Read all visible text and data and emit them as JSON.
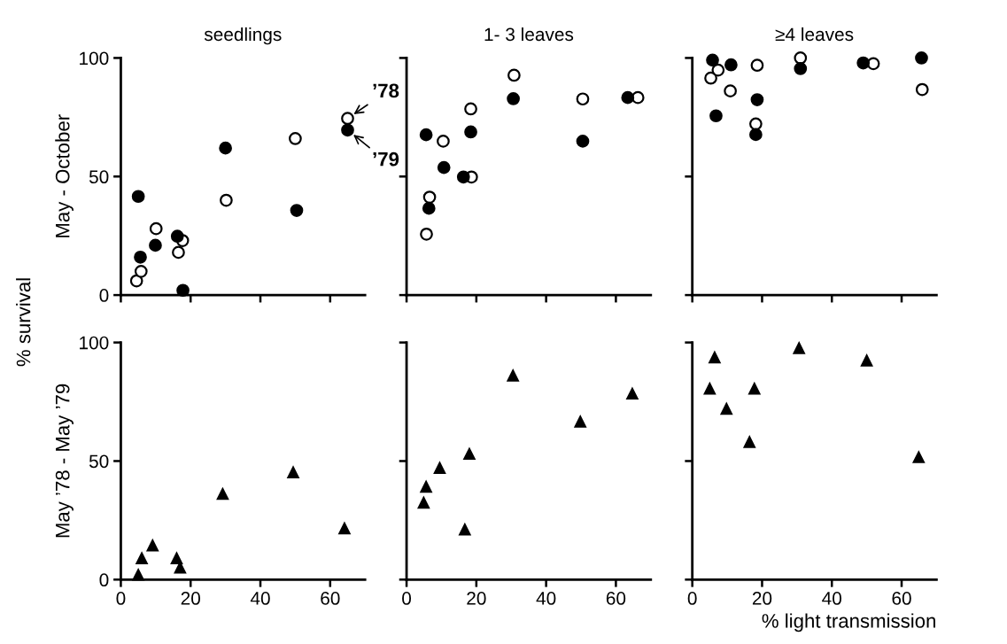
{
  "chart_data": [
    {
      "type": "scatter",
      "title": "seedlings",
      "ylabel": "May - October",
      "xlim": [
        0,
        70
      ],
      "ylim": [
        0,
        100
      ],
      "xticks": [
        0,
        20,
        40,
        60
      ],
      "yticks": [
        0,
        50,
        100
      ],
      "marker": "circle",
      "tick_labels": "y",
      "annotations": [
        "% survival",
        {
          "text": "’78",
          "x": 65,
          "y": 74.5
        },
        {
          "text": "’79",
          "x": 65,
          "y": 69.6
        }
      ],
      "series": [
        {
          "color": "#ffffff",
          "x": [
            4.5,
            5.8,
            10.1,
            16.5,
            17.7,
            30.2,
            50,
            65
          ],
          "values": [
            6,
            10,
            28,
            18,
            23,
            40,
            66,
            74.5
          ]
        },
        {
          "color": "#000000",
          "x": [
            5,
            5.6,
            9.9,
            16.2,
            17.8,
            30,
            50.4,
            65
          ],
          "values": [
            41.6,
            16,
            21,
            24.8,
            2,
            62,
            35.7,
            69.6
          ]
        }
      ]
    },
    {
      "type": "scatter",
      "title": "1- 3 leaves",
      "xlim": [
        0,
        70
      ],
      "ylim": [
        0,
        100
      ],
      "xticks": [
        0,
        20,
        40,
        60
      ],
      "yticks": [
        0,
        50,
        100
      ],
      "marker": "circle",
      "tick_labels": false,
      "series": [
        {
          "color": "#ffffff",
          "x": [
            5.7,
            6.6,
            10.5,
            18.4,
            18.6,
            30.8,
            50.5,
            66.3
          ],
          "values": [
            25.7,
            41.3,
            64.9,
            78.5,
            49.8,
            92.7,
            82.7,
            83.3
          ]
        },
        {
          "color": "#000000",
          "x": [
            5.6,
            6.4,
            10.7,
            16.3,
            18.4,
            30.6,
            50.5,
            63.4
          ],
          "values": [
            67.6,
            36.6,
            53.8,
            49.8,
            68.8,
            82.8,
            64.9,
            83.3
          ]
        }
      ]
    },
    {
      "type": "scatter",
      "title": "≥4 leaves",
      "xlim": [
        0,
        70
      ],
      "ylim": [
        0,
        100
      ],
      "xticks": [
        0,
        20,
        40,
        60
      ],
      "yticks": [
        0,
        50,
        100
      ],
      "marker": "circle",
      "tick_labels": false,
      "series": [
        {
          "color": "#ffffff",
          "x": [
            5.3,
            7.4,
            10.9,
            18.6,
            18.2,
            31,
            51.9,
            65.9
          ],
          "values": [
            91.5,
            94.9,
            86.1,
            96.9,
            72.2,
            100,
            97.6,
            86.7
          ]
        },
        {
          "color": "#000000",
          "x": [
            5.8,
            6.8,
            11.1,
            18.6,
            18.2,
            31,
            49,
            65.7
          ],
          "values": [
            99.1,
            75.6,
            97.1,
            82.4,
            67.7,
            95.5,
            97.9,
            100
          ]
        }
      ]
    },
    {
      "type": "scatter",
      "ylabel": "May ’78 - May ’79",
      "xlim": [
        0,
        70
      ],
      "ylim": [
        0,
        100
      ],
      "xticks": [
        0,
        20,
        40,
        60
      ],
      "yticks": [
        0,
        50,
        100
      ],
      "marker": "triangle",
      "series": [
        {
          "color": "#000000",
          "x": [
            5,
            6,
            9.1,
            16,
            17,
            29.2,
            49.4,
            64.1
          ],
          "values": [
            2,
            9,
            14.4,
            9,
            5,
            36.1,
            45.2,
            21.6
          ]
        }
      ]
    },
    {
      "type": "scatter",
      "xlim": [
        0,
        70
      ],
      "ylim": [
        0,
        100
      ],
      "xticks": [
        0,
        20,
        40,
        60
      ],
      "yticks": [
        0,
        50,
        100
      ],
      "marker": "triangle",
      "tick_labels": "x",
      "series": [
        {
          "color": "#000000",
          "x": [
            4.9,
            5.6,
            9.5,
            16.7,
            18,
            30.5,
            49.8,
            64.7
          ],
          "values": [
            32.4,
            39.1,
            47.1,
            21.1,
            53,
            86,
            66.6,
            78.4
          ]
        }
      ]
    },
    {
      "type": "scatter",
      "xlabel": "% light transmission",
      "xlim": [
        0,
        70
      ],
      "ylim": [
        0,
        100
      ],
      "xticks": [
        0,
        20,
        40,
        60
      ],
      "yticks": [
        0,
        50,
        100
      ],
      "marker": "triangle",
      "tick_labels": "x",
      "series": [
        {
          "color": "#000000",
          "x": [
            5,
            6.4,
            9.8,
            16.4,
            17.8,
            30.6,
            50,
            64.9
          ],
          "values": [
            80.5,
            93.7,
            72,
            58,
            80.5,
            97.6,
            92.4,
            51.6
          ]
        }
      ]
    }
  ]
}
